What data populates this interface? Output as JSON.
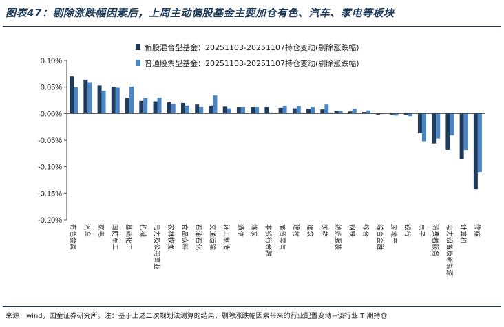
{
  "header": {
    "title": "图表47：剔除涨跌幅因素后，上周主动偏股基金主要加仓有色、汽车、家电等板块"
  },
  "footer": {
    "source": "来源：wind，国金证券研究所。注：基于上述二次规划法测算的结果，剔除涨跌幅因素带来的行业配置变动=该行业 T 期持仓"
  },
  "chart_data": {
    "type": "bar",
    "categories": [
      "有色金属",
      "汽车",
      "家电",
      "国防军工",
      "基础化工",
      "机械",
      "电力及公用事业",
      "农林牧渔",
      "食品饮料",
      "石油石化",
      "交通运输",
      "轻工制造",
      "通信",
      "煤炭",
      "非银行金融",
      "商贸零售",
      "建材",
      "建筑",
      "医药",
      "纺织服装",
      "钢铁",
      "综合",
      "综合金融",
      "房地产",
      "银行",
      "电子",
      "消费者服务",
      "电力设备及新能源",
      "计算机",
      "传媒"
    ],
    "series": [
      {
        "name": "偏股混合型基金：20251103-20251107持仓变动(剔除涨跌幅)",
        "color": "#1f3b5c",
        "values": [
          0.07,
          0.064,
          0.053,
          0.051,
          0.03,
          0.024,
          0.023,
          0.021,
          0.02,
          0.017,
          0.015,
          0.013,
          0.012,
          0.012,
          0.012,
          0.011,
          0.01,
          0.009,
          0.008,
          0.005,
          0.004,
          0.003,
          -0.002,
          -0.002,
          -0.003,
          -0.037,
          -0.056,
          -0.068,
          -0.086,
          -0.142
        ]
      },
      {
        "name": "普通股票型基金：20251103-20251107持仓变动(剔除涨跌幅)",
        "color": "#4a86c5",
        "values": [
          0.05,
          0.058,
          0.043,
          0.049,
          0.051,
          0.029,
          0.03,
          0.018,
          0.015,
          0.012,
          0.034,
          0.01,
          0.012,
          0.012,
          0.002,
          0.014,
          0.014,
          0.012,
          0.017,
          0.005,
          0.009,
          0.006,
          -0.001,
          -0.004,
          -0.005,
          -0.052,
          -0.047,
          -0.041,
          -0.069,
          -0.111
        ]
      }
    ],
    "y_ticks": [
      "0.10%",
      "0.05%",
      "0.00%",
      "-0.05%",
      "-0.10%",
      "-0.15%",
      "-0.20%"
    ],
    "ylim": [
      -0.2,
      0.1
    ],
    "y_unit": "%",
    "grid": false,
    "legend_position": "top-left"
  }
}
